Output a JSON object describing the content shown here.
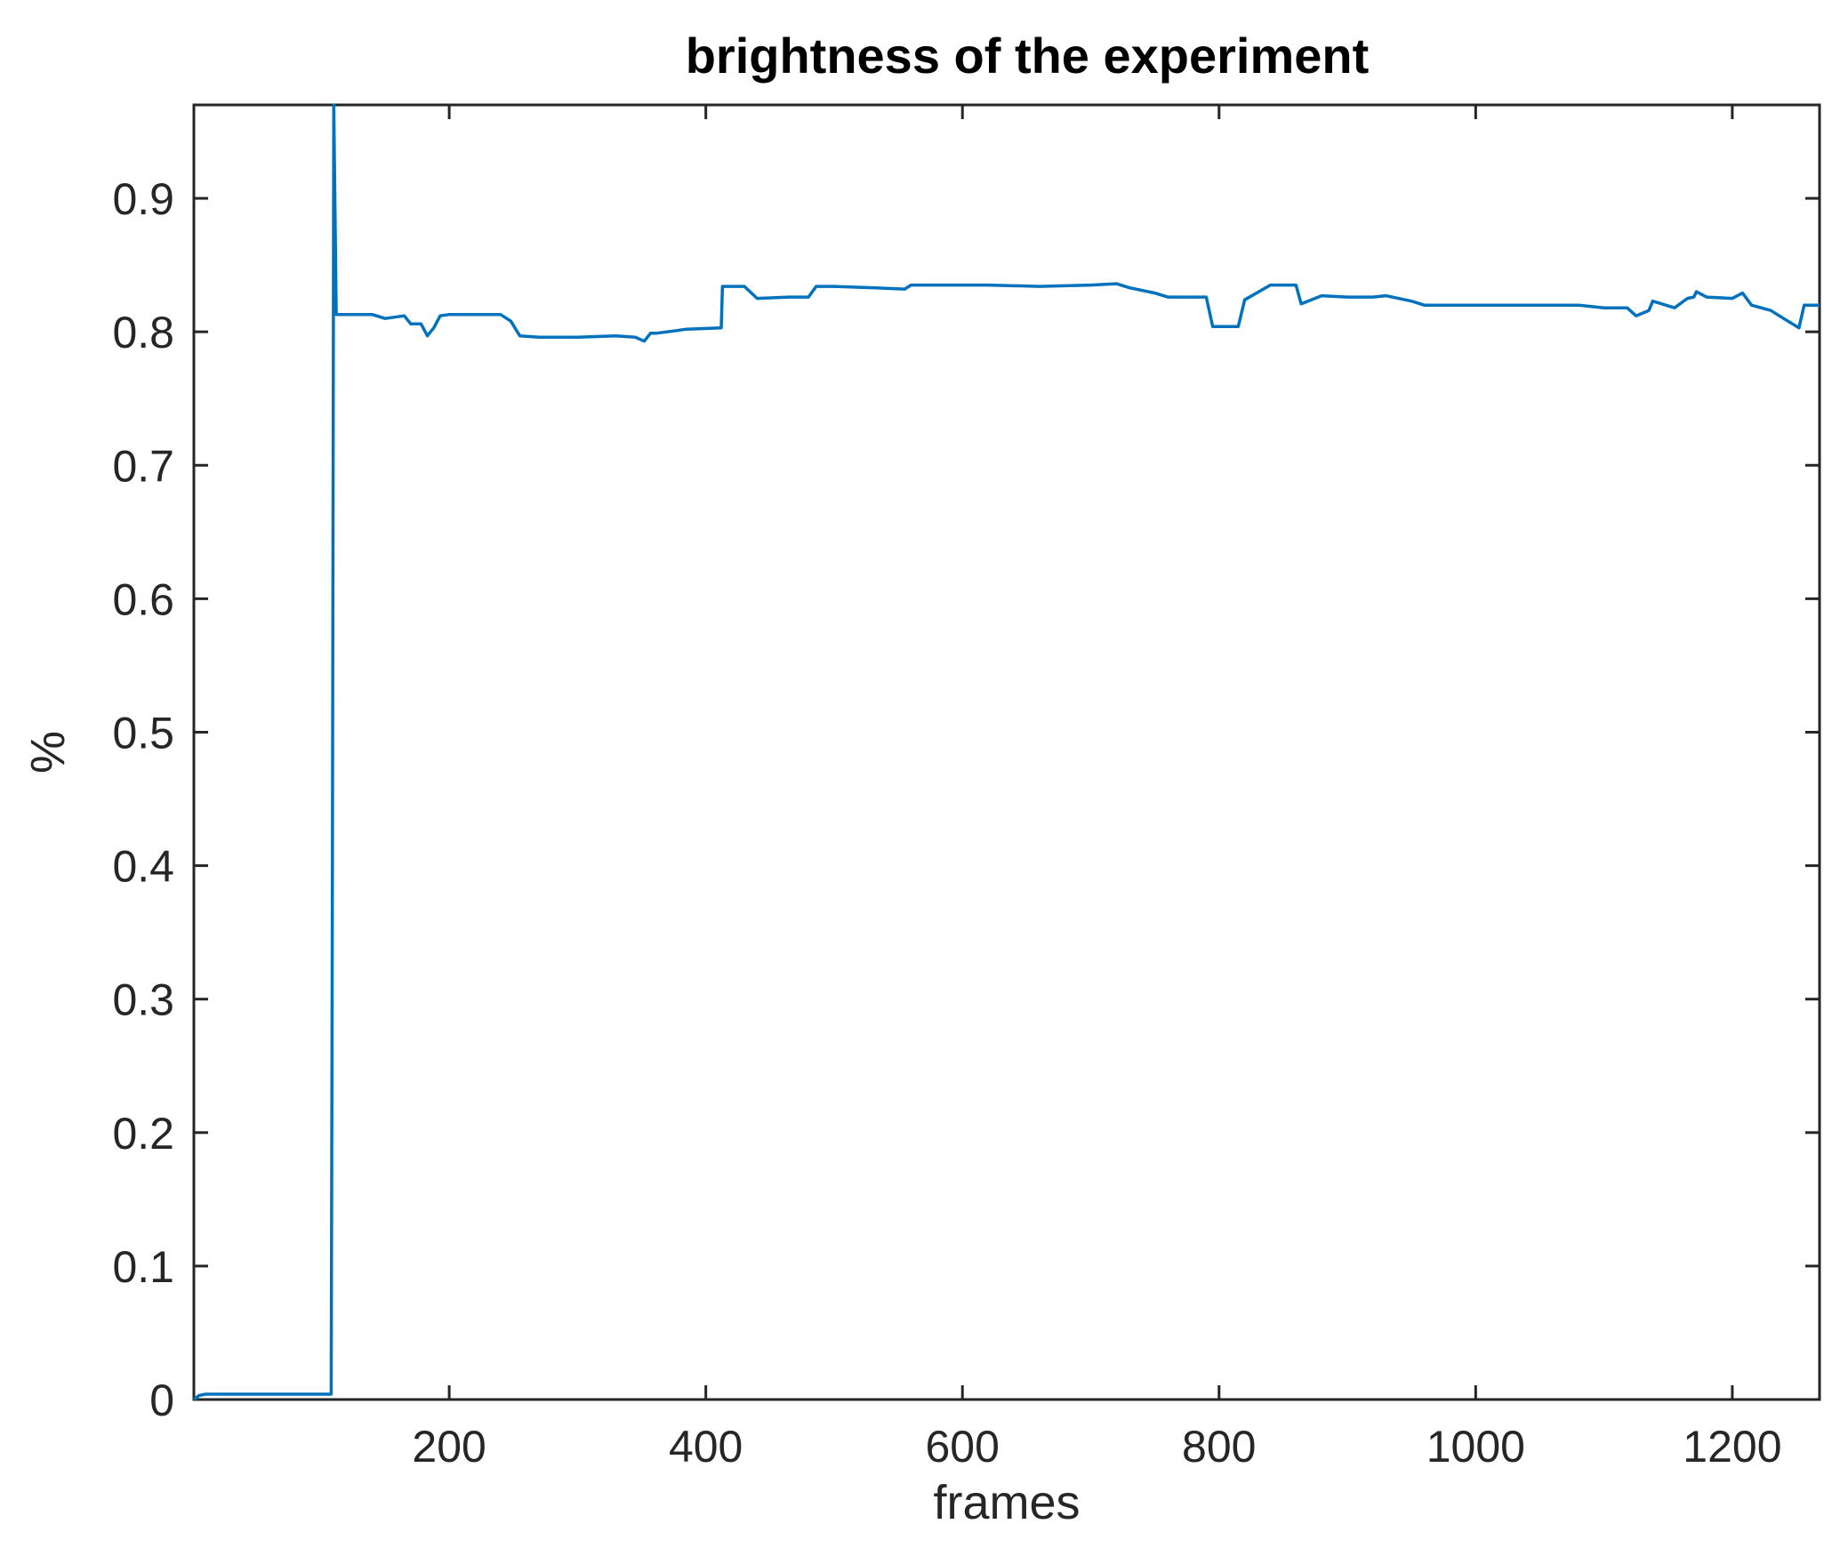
{
  "chart_data": {
    "type": "line",
    "title": "brightness of the experiment",
    "xlabel": "frames",
    "ylabel": "%",
    "xlim": [
      1,
      1268
    ],
    "ylim": [
      0,
      0.97
    ],
    "xticks": [
      200,
      400,
      600,
      800,
      1000,
      1200
    ],
    "xtick_labels": [
      "200",
      "400",
      "600",
      "800",
      "1000",
      "1200"
    ],
    "yticks": [
      0,
      0.1,
      0.2,
      0.3,
      0.4,
      0.5,
      0.6,
      0.7,
      0.8,
      0.9
    ],
    "ytick_labels": [
      "0",
      "0.1",
      "0.2",
      "0.3",
      "0.4",
      "0.5",
      "0.6",
      "0.7",
      "0.8",
      "0.9"
    ],
    "grid": false,
    "line_color": "#0072BD",
    "series": [
      {
        "x": [
          1,
          5,
          10,
          60,
          108,
          109,
          110,
          112,
          140,
          150,
          165,
          170,
          178,
          183,
          188,
          193,
          200,
          240,
          248,
          255,
          270,
          300,
          330,
          345,
          352,
          357,
          362,
          378,
          385,
          412,
          413,
          430,
          440,
          465,
          480,
          486,
          500,
          530,
          555,
          560,
          580,
          620,
          660,
          700,
          720,
          730,
          750,
          760,
          790,
          795,
          800,
          815,
          820,
          840,
          860,
          864,
          880,
          900,
          920,
          930,
          950,
          960,
          980,
          1000,
          1040,
          1080,
          1100,
          1118,
          1125,
          1135,
          1138,
          1155,
          1165,
          1170,
          1172,
          1180,
          1200,
          1208,
          1215,
          1230,
          1240,
          1252,
          1256,
          1268
        ],
        "y": [
          0.0,
          0.003,
          0.004,
          0.004,
          0.004,
          0.4,
          0.97,
          0.813,
          0.813,
          0.81,
          0.812,
          0.806,
          0.806,
          0.797,
          0.803,
          0.812,
          0.813,
          0.813,
          0.808,
          0.797,
          0.796,
          0.796,
          0.797,
          0.796,
          0.793,
          0.799,
          0.799,
          0.801,
          0.802,
          0.803,
          0.834,
          0.834,
          0.825,
          0.826,
          0.826,
          0.834,
          0.834,
          0.833,
          0.832,
          0.835,
          0.835,
          0.835,
          0.834,
          0.835,
          0.836,
          0.833,
          0.829,
          0.826,
          0.826,
          0.804,
          0.804,
          0.804,
          0.824,
          0.835,
          0.835,
          0.821,
          0.827,
          0.826,
          0.826,
          0.827,
          0.823,
          0.82,
          0.82,
          0.82,
          0.82,
          0.82,
          0.818,
          0.818,
          0.812,
          0.816,
          0.823,
          0.818,
          0.825,
          0.826,
          0.83,
          0.826,
          0.825,
          0.829,
          0.82,
          0.816,
          0.81,
          0.803,
          0.82,
          0.82
        ]
      }
    ]
  }
}
